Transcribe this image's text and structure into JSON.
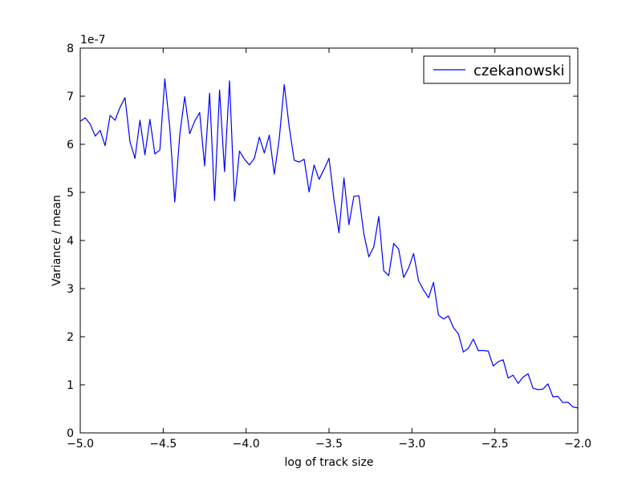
{
  "colors": {
    "series": "#0000ff",
    "axes": "#000000",
    "background": "#ffffff"
  },
  "chart_data": {
    "type": "line",
    "title": "",
    "xlabel": "log of track size",
    "ylabel": "Variance / mean",
    "y_offset_text": "1e-7",
    "xlim": [
      -5.0,
      -2.0
    ],
    "ylim": [
      0,
      8
    ],
    "x_ticks": [
      -5.0,
      -4.5,
      -4.0,
      -3.5,
      -3.0,
      -2.5,
      -2.0
    ],
    "x_tick_labels": [
      "−5.0",
      "−4.5",
      "−4.0",
      "−3.5",
      "−3.0",
      "−2.5",
      "−2.0"
    ],
    "y_ticks": [
      0,
      1,
      2,
      3,
      4,
      5,
      6,
      7,
      8
    ],
    "y_tick_labels": [
      "0",
      "1",
      "2",
      "3",
      "4",
      "5",
      "6",
      "7",
      "8"
    ],
    "grid": false,
    "legend_position": "top-right",
    "series": [
      {
        "name": "czekanowski",
        "color": "#0000ff",
        "x": [
          -5.0,
          -4.97,
          -4.94,
          -4.91,
          -4.88,
          -4.85,
          -4.82,
          -4.79,
          -4.76,
          -4.73,
          -4.7,
          -4.67,
          -4.64,
          -4.61,
          -4.58,
          -4.55,
          -4.52,
          -4.49,
          -4.46,
          -4.43,
          -4.4,
          -4.37,
          -4.34,
          -4.31,
          -4.28,
          -4.25,
          -4.22,
          -4.19,
          -4.16,
          -4.13,
          -4.1,
          -4.07,
          -4.04,
          -4.01,
          -3.98,
          -3.95,
          -3.92,
          -3.89,
          -3.86,
          -3.83,
          -3.8,
          -3.77,
          -3.74,
          -3.71,
          -3.68,
          -3.65,
          -3.62,
          -3.59,
          -3.56,
          -3.53,
          -3.5,
          -3.47,
          -3.44,
          -3.41,
          -3.38,
          -3.35,
          -3.32,
          -3.29,
          -3.26,
          -3.23,
          -3.2,
          -3.17,
          -3.14,
          -3.11,
          -3.08,
          -3.05,
          -3.02,
          -2.99,
          -2.96,
          -2.93,
          -2.9,
          -2.87,
          -2.84,
          -2.81,
          -2.78,
          -2.75,
          -2.72,
          -2.69,
          -2.66,
          -2.63,
          -2.6,
          -2.57,
          -2.54,
          -2.51,
          -2.48,
          -2.45,
          -2.42,
          -2.39,
          -2.36,
          -2.33,
          -2.3,
          -2.27,
          -2.24,
          -2.21,
          -2.18,
          -2.15,
          -2.12,
          -2.09,
          -2.06,
          -2.03,
          -2.0
        ],
        "y": [
          6.48,
          6.55,
          6.42,
          6.17,
          6.29,
          5.97,
          6.6,
          6.5,
          6.77,
          6.97,
          6.05,
          5.71,
          6.5,
          5.78,
          6.52,
          5.8,
          5.88,
          7.36,
          6.34,
          4.8,
          6.2,
          6.99,
          6.22,
          6.48,
          6.66,
          5.55,
          7.06,
          4.83,
          7.13,
          5.43,
          7.32,
          4.82,
          5.86,
          5.69,
          5.57,
          5.71,
          6.15,
          5.82,
          6.19,
          5.38,
          6.12,
          7.24,
          6.36,
          5.67,
          5.63,
          5.69,
          5.01,
          5.57,
          5.27,
          5.48,
          5.71,
          4.85,
          4.16,
          5.3,
          4.33,
          4.92,
          4.93,
          4.14,
          3.66,
          3.87,
          4.5,
          3.37,
          3.27,
          3.94,
          3.82,
          3.23,
          3.43,
          3.73,
          3.16,
          2.97,
          2.81,
          3.13,
          2.45,
          2.37,
          2.43,
          2.19,
          2.06,
          1.68,
          1.76,
          1.95,
          1.71,
          1.71,
          1.7,
          1.39,
          1.48,
          1.52,
          1.14,
          1.2,
          1.03,
          1.16,
          1.23,
          0.93,
          0.9,
          0.91,
          1.02,
          0.75,
          0.76,
          0.63,
          0.64,
          0.54,
          0.52
        ]
      }
    ]
  }
}
